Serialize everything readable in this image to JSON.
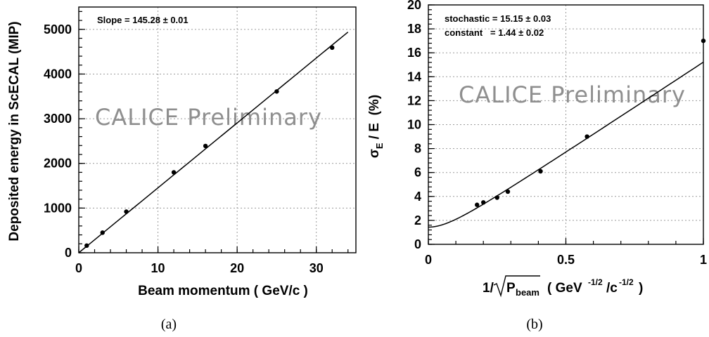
{
  "chart_data": [
    {
      "type": "scatter",
      "panel_caption": "(a)",
      "xlabel": "Beam momentum ( GeV/c )",
      "ylabel": "Deposited energy in ScECAL (MIP)",
      "xlim": [
        0,
        35
      ],
      "ylim": [
        0,
        5500
      ],
      "x_ticks": [
        0,
        10,
        20,
        30
      ],
      "y_ticks": [
        0,
        1000,
        2000,
        3000,
        4000,
        5000
      ],
      "grid": true,
      "watermark": "CALICE  Preliminary",
      "annotations": [
        "Slope = 145.28 ± 0.01"
      ],
      "series": [
        {
          "x": [
            1,
            3,
            6,
            12,
            16,
            25,
            32
          ],
          "y": [
            160,
            450,
            920,
            1800,
            2390,
            3610,
            4590
          ]
        }
      ],
      "fit": {
        "kind": "linear",
        "slope": 145.28,
        "intercept": 0,
        "x_range": [
          0,
          34
        ]
      }
    },
    {
      "type": "scatter",
      "panel_caption": "(b)",
      "xlabel_main": "1/",
      "xlabel_rad": "P",
      "xlabel_rad_sub": "beam",
      "xlabel_units_a": "( GeV",
      "xlabel_units_sup1": "-1/2",
      "xlabel_units_b": "/c",
      "xlabel_units_sup2": "-1/2",
      "xlabel_units_c": ")",
      "ylabel_sigma": "σ",
      "ylabel_sub": "E",
      "ylabel_rest": " / E  (%)",
      "xlim": [
        0,
        1.0
      ],
      "ylim": [
        0,
        20
      ],
      "x_ticks": [
        0,
        0.5,
        1
      ],
      "y_ticks": [
        0,
        2,
        4,
        6,
        8,
        10,
        12,
        14,
        16,
        18,
        20
      ],
      "grid": true,
      "watermark": "CALICE  Preliminary",
      "annotations": [
        "stochastic = 15.15 ± 0.03",
        "constant   = 1.44 ± 0.02"
      ],
      "series": [
        {
          "x": [
            0.177,
            0.2,
            0.25,
            0.289,
            0.408,
            0.577,
            1.0
          ],
          "y": [
            3.3,
            3.5,
            3.9,
            4.4,
            6.1,
            9.0,
            17.0
          ]
        }
      ],
      "fit": {
        "kind": "quadrature",
        "stochastic": 15.15,
        "constant": 1.44,
        "x_range": [
          0,
          1.0
        ]
      }
    }
  ]
}
